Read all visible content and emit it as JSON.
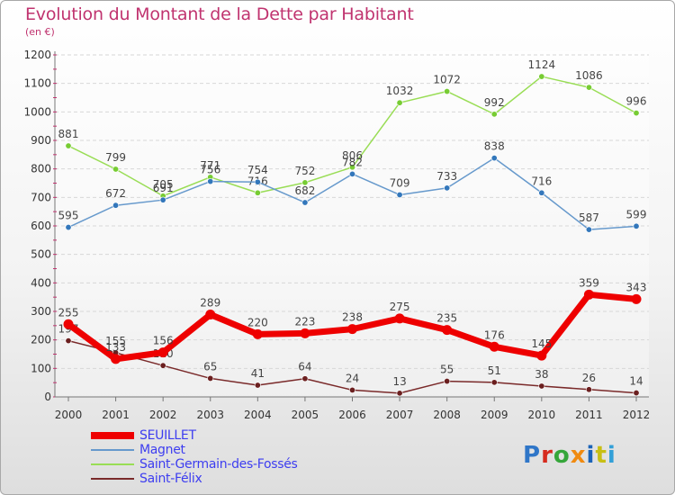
{
  "title": "Evolution du Montant de la Dette par Habitant",
  "subtitle": "(en €)",
  "brand": {
    "text": "Proxiti",
    "letter_colors": [
      "#2f76c8",
      "#d62b1e",
      "#35a63a",
      "#f08a10",
      "#1b63b8",
      "#c8bf14",
      "#33a0d8"
    ]
  },
  "chart_data": {
    "type": "line",
    "x": [
      "2000",
      "2001",
      "2002",
      "2003",
      "2004",
      "2005",
      "2006",
      "2007",
      "2008",
      "2009",
      "2010",
      "2011",
      "2012"
    ],
    "y_ticks": [
      "0",
      "100",
      "200",
      "300",
      "400",
      "500",
      "600",
      "700",
      "800",
      "900",
      "1000",
      "1100",
      "1200"
    ],
    "ylim": [
      0,
      1200
    ],
    "grid": "horizontal",
    "legend_position": "bottom-left",
    "series": [
      {
        "name": "Saint-Germain-des-Fossés",
        "color": "#99dd55",
        "marker_color": "#77cc33",
        "values": [
          881,
          799,
          705,
          771,
          716,
          752,
          806,
          1032,
          1072,
          992,
          1124,
          1086,
          996
        ],
        "labels": [
          "881",
          "799",
          "705",
          "771",
          "716",
          "752",
          "806",
          "1032",
          "1072",
          "992",
          "1124",
          "1086",
          "996"
        ]
      },
      {
        "name": "Magnet",
        "color": "#6699cc",
        "marker_color": "#3377bb",
        "values": [
          595,
          672,
          691,
          756,
          754,
          682,
          782,
          709,
          733,
          838,
          716,
          587,
          599
        ],
        "labels": [
          "595",
          "672",
          "691",
          "756",
          "754",
          "682",
          "782",
          "709",
          "733",
          "838",
          "716",
          "587",
          "599"
        ]
      },
      {
        "name": "Saint-Félix",
        "color": "#7a2a2a",
        "marker_color": "#6b1f1f",
        "values": [
          197,
          155,
          110,
          65,
          41,
          64,
          24,
          13,
          55,
          51,
          38,
          26,
          14
        ],
        "labels": [
          "197",
          "155",
          "110",
          "65",
          "41",
          "64",
          "24",
          "13",
          "55",
          "51",
          "38",
          "26",
          "14"
        ]
      },
      {
        "name": "SEUILLET",
        "color": "#ee0000",
        "marker_color": "#ee0000",
        "values": [
          255,
          133,
          156,
          289,
          220,
          223,
          238,
          275,
          235,
          176,
          145,
          359,
          343
        ],
        "labels": [
          "255",
          "133",
          "156",
          "289",
          "220",
          "223",
          "238",
          "275",
          "235",
          "176",
          "145",
          "359",
          "343"
        ]
      }
    ],
    "legend": [
      "SEUILLET",
      "Magnet",
      "Saint-Germain-des-Fossés",
      "Saint-Félix"
    ]
  }
}
